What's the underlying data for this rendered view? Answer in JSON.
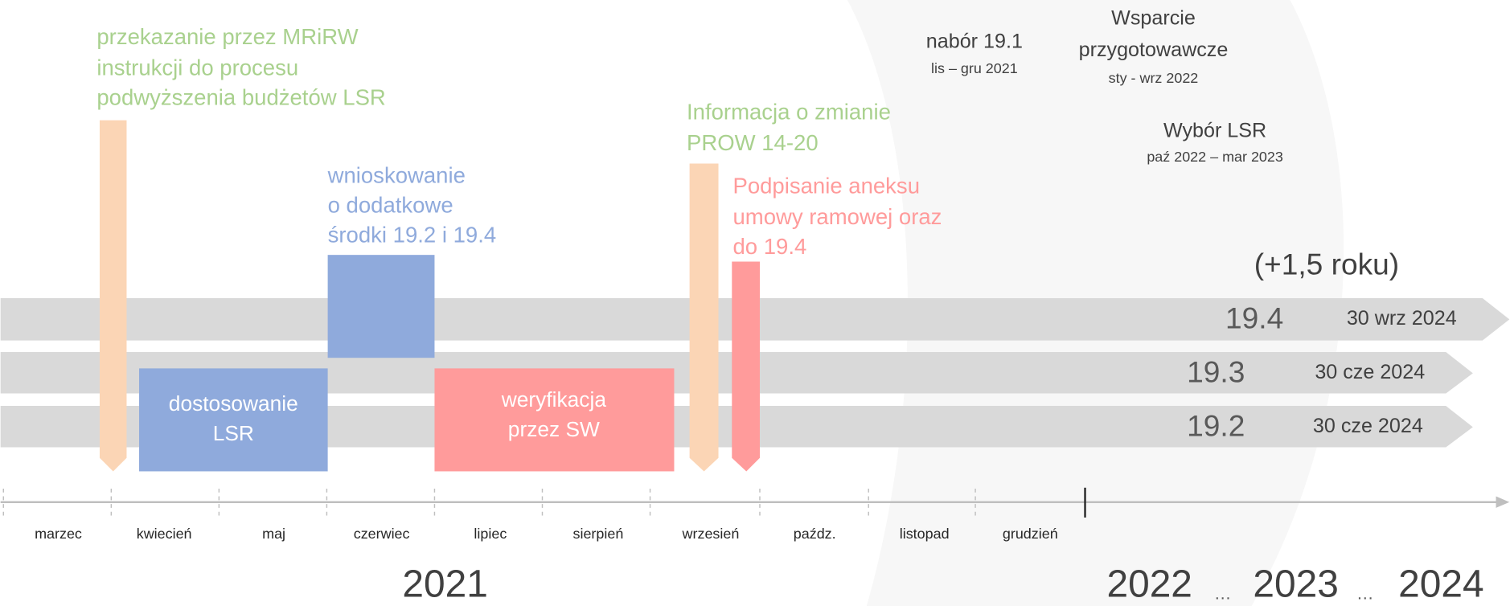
{
  "steps": [
    {
      "lines": [
        "przekazanie przez MRiRW",
        "instrukcji do procesu",
        "podwyższenia budżetów LSR"
      ]
    },
    {
      "lines": [
        "wnioskowanie",
        "o dodatkowe",
        "środki 19.2 i 19.4"
      ]
    },
    {
      "lines": [
        "Informacja o zmianie",
        "PROW 14-20"
      ]
    },
    {
      "lines": [
        "Podpisanie aneksu",
        "umowy ramowej oraz",
        "do 19.4"
      ]
    }
  ],
  "blocks": [
    {
      "lines": [
        "dostosowanie",
        "LSR"
      ]
    },
    {
      "lines": [
        "weryfikacja",
        "przez SW"
      ]
    }
  ],
  "phases": [
    {
      "lines": [
        "nabór 19.1"
      ],
      "period": "lis – gru 2021"
    },
    {
      "lines": [
        "Wsparcie",
        "przygotowawcze"
      ],
      "period": "sty - wrz 2022"
    },
    {
      "lines": [
        "Wybór LSR"
      ],
      "period": "paź 2022 – mar 2023"
    }
  ],
  "extension": "(+1,5 roku)",
  "bands": [
    {
      "label": "19.4",
      "deadline": "30 wrz 2024"
    },
    {
      "label": "19.3",
      "deadline": "30 cze 2024"
    },
    {
      "label": "19.2",
      "deadline": "30 cze 2024"
    }
  ],
  "months": [
    "marzec",
    "kwiecień",
    "maj",
    "czerwiec",
    "lipiec",
    "sierpień",
    "wrzesień",
    "paźdz.",
    "listopad",
    "grudzień"
  ],
  "years": [
    "2021",
    "2022",
    "2023",
    "2024"
  ],
  "separators": [
    "…",
    "…"
  ]
}
